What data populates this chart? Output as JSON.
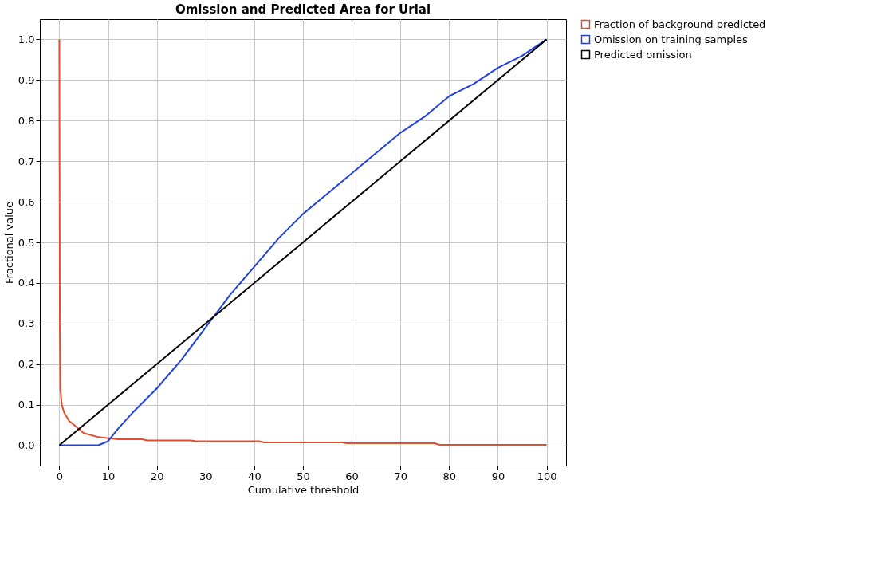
{
  "chart_data": {
    "type": "line",
    "title": "Omission and Predicted Area for Urial",
    "xlabel": "Cumulative threshold",
    "ylabel": "Fractional value",
    "xlim": [
      -4,
      104
    ],
    "ylim": [
      -0.05,
      1.05
    ],
    "xticks": [
      0,
      10,
      20,
      30,
      40,
      50,
      60,
      70,
      80,
      90,
      100
    ],
    "yticks": [
      {
        "value": 0,
        "label": "0.0"
      },
      {
        "value": 0.1,
        "label": "0.1"
      },
      {
        "value": 0.2,
        "label": "0.2"
      },
      {
        "value": 0.3,
        "label": "0.3"
      },
      {
        "value": 0.4,
        "label": "0.4"
      },
      {
        "value": 0.5,
        "label": "0.5"
      },
      {
        "value": 0.6,
        "label": "0.6"
      },
      {
        "value": 0.7,
        "label": "0.7"
      },
      {
        "value": 0.8,
        "label": "0.8"
      },
      {
        "value": 0.9,
        "label": "0.9"
      },
      {
        "value": 1,
        "label": "1.0"
      }
    ],
    "grid": true,
    "legend": "top right",
    "marker": "none",
    "line_style": "solid",
    "series": [
      {
        "name": "Fraction of background predicted",
        "color": "#e0502f",
        "x": [
          0,
          0.1,
          0.2,
          0.5,
          1,
          2,
          3,
          5,
          8,
          12,
          17,
          18,
          27,
          28,
          41,
          42,
          58,
          59,
          77,
          78,
          100
        ],
        "values": [
          1.0,
          0.3,
          0.14,
          0.1,
          0.08,
          0.06,
          0.05,
          0.03,
          0.02,
          0.015,
          0.015,
          0.012,
          0.012,
          0.01,
          0.01,
          0.007,
          0.007,
          0.005,
          0.005,
          0.001,
          0.001
        ]
      },
      {
        "name": "Omission on training samples",
        "color": "#2040e0",
        "x": [
          0,
          8,
          10,
          12,
          15,
          20,
          25,
          30,
          35,
          40,
          45,
          50,
          55,
          60,
          65,
          70,
          75,
          80,
          85,
          90,
          95,
          100
        ],
        "values": [
          0,
          0,
          0.01,
          0.04,
          0.08,
          0.14,
          0.21,
          0.29,
          0.37,
          0.44,
          0.51,
          0.57,
          0.62,
          0.67,
          0.72,
          0.77,
          0.81,
          0.86,
          0.89,
          0.93,
          0.96,
          1.0
        ]
      },
      {
        "name": "Predicted omission",
        "color": "#000000",
        "x": [
          0,
          100
        ],
        "values": [
          0,
          1
        ]
      }
    ]
  }
}
